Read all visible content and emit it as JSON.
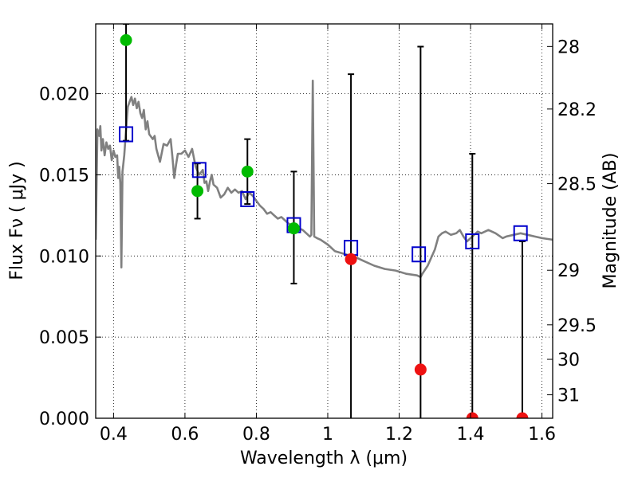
{
  "chart_data": {
    "type": "scatter",
    "title": "",
    "xlabel": "Wavelength  λ (μm)",
    "ylabel": "Flux  Fν  ( μJy )",
    "ylabel_right": "Magnitude (AB)",
    "xlim": [
      0.35,
      1.63
    ],
    "ylim": [
      0.0,
      0.0243
    ],
    "grid": true,
    "x_ticks": [
      0.4,
      0.6,
      0.8,
      1.0,
      1.2,
      1.4,
      1.6
    ],
    "x_tick_labels": [
      "0.4",
      "0.6",
      "0.8",
      "1",
      "1.2",
      "1.4",
      "1.6"
    ],
    "y_ticks": [
      0.0,
      0.005,
      0.01,
      0.015,
      0.02
    ],
    "y_tick_labels": [
      "0.000",
      "0.005",
      "0.010",
      "0.015",
      "0.020"
    ],
    "right_ticks": [
      28,
      28.2,
      28.5,
      29,
      29.5,
      30,
      31
    ],
    "right_tick_labels": [
      "28",
      "28.2",
      "28.5",
      "29",
      "29.5",
      "30",
      "31"
    ],
    "colors": {
      "sed_line": "#808080",
      "model_box": "#0000cc",
      "detection": "#00bb00",
      "upper_limit": "#ee1111",
      "errorbar": "#000000"
    },
    "sed_template": [
      [
        0.35,
        0.011
      ],
      [
        0.355,
        0.0178
      ],
      [
        0.36,
        0.0174
      ],
      [
        0.363,
        0.018
      ],
      [
        0.366,
        0.0165
      ],
      [
        0.37,
        0.0172
      ],
      [
        0.375,
        0.0162
      ],
      [
        0.38,
        0.017
      ],
      [
        0.385,
        0.0166
      ],
      [
        0.39,
        0.0168
      ],
      [
        0.395,
        0.0159
      ],
      [
        0.4,
        0.0165
      ],
      [
        0.405,
        0.0161
      ],
      [
        0.41,
        0.0162
      ],
      [
        0.413,
        0.0148
      ],
      [
        0.416,
        0.0155
      ],
      [
        0.419,
        0.0145
      ],
      [
        0.422,
        0.0093
      ],
      [
        0.425,
        0.0152
      ],
      [
        0.43,
        0.0162
      ],
      [
        0.435,
        0.0178
      ],
      [
        0.44,
        0.0192
      ],
      [
        0.445,
        0.0195
      ],
      [
        0.45,
        0.0198
      ],
      [
        0.455,
        0.0193
      ],
      [
        0.46,
        0.0197
      ],
      [
        0.465,
        0.0191
      ],
      [
        0.47,
        0.0195
      ],
      [
        0.475,
        0.0188
      ],
      [
        0.48,
        0.0185
      ],
      [
        0.485,
        0.019
      ],
      [
        0.49,
        0.0178
      ],
      [
        0.495,
        0.0183
      ],
      [
        0.5,
        0.0175
      ],
      [
        0.51,
        0.0172
      ],
      [
        0.515,
        0.0174
      ],
      [
        0.52,
        0.0166
      ],
      [
        0.525,
        0.0162
      ],
      [
        0.53,
        0.0158
      ],
      [
        0.54,
        0.0169
      ],
      [
        0.55,
        0.0168
      ],
      [
        0.56,
        0.0172
      ],
      [
        0.565,
        0.0161
      ],
      [
        0.57,
        0.0148
      ],
      [
        0.575,
        0.0156
      ],
      [
        0.58,
        0.0163
      ],
      [
        0.59,
        0.0163
      ],
      [
        0.6,
        0.0165
      ],
      [
        0.61,
        0.0161
      ],
      [
        0.62,
        0.0166
      ],
      [
        0.63,
        0.0155
      ],
      [
        0.64,
        0.015
      ],
      [
        0.65,
        0.0153
      ],
      [
        0.655,
        0.0145
      ],
      [
        0.66,
        0.0146
      ],
      [
        0.665,
        0.014
      ],
      [
        0.67,
        0.0146
      ],
      [
        0.675,
        0.015
      ],
      [
        0.68,
        0.0144
      ],
      [
        0.69,
        0.0142
      ],
      [
        0.7,
        0.0136
      ],
      [
        0.71,
        0.0138
      ],
      [
        0.72,
        0.0142
      ],
      [
        0.73,
        0.0139
      ],
      [
        0.74,
        0.0141
      ],
      [
        0.75,
        0.0139
      ],
      [
        0.76,
        0.014
      ],
      [
        0.77,
        0.0135
      ],
      [
        0.78,
        0.0139
      ],
      [
        0.79,
        0.0137
      ],
      [
        0.8,
        0.0134
      ],
      [
        0.81,
        0.0131
      ],
      [
        0.82,
        0.0129
      ],
      [
        0.83,
        0.0126
      ],
      [
        0.84,
        0.0127
      ],
      [
        0.85,
        0.0125
      ],
      [
        0.86,
        0.0123
      ],
      [
        0.87,
        0.0124
      ],
      [
        0.88,
        0.0122
      ],
      [
        0.89,
        0.012
      ],
      [
        0.9,
        0.0119
      ],
      [
        0.91,
        0.0118
      ],
      [
        0.92,
        0.0117
      ],
      [
        0.93,
        0.0116
      ],
      [
        0.94,
        0.0114
      ],
      [
        0.95,
        0.0112
      ],
      [
        0.954,
        0.0113
      ],
      [
        0.958,
        0.0208
      ],
      [
        0.962,
        0.0112
      ],
      [
        0.97,
        0.0111
      ],
      [
        0.98,
        0.011
      ],
      [
        1.0,
        0.0107
      ],
      [
        1.02,
        0.0103
      ],
      [
        1.05,
        0.0101
      ],
      [
        1.08,
        0.0099
      ],
      [
        1.1,
        0.0097
      ],
      [
        1.13,
        0.0094
      ],
      [
        1.16,
        0.0092
      ],
      [
        1.19,
        0.0091
      ],
      [
        1.22,
        0.0089
      ],
      [
        1.25,
        0.0088
      ],
      [
        1.26,
        0.0087
      ],
      [
        1.265,
        0.0089
      ],
      [
        1.28,
        0.0094
      ],
      [
        1.3,
        0.0104
      ],
      [
        1.31,
        0.0112
      ],
      [
        1.32,
        0.0114
      ],
      [
        1.33,
        0.0115
      ],
      [
        1.345,
        0.0113
      ],
      [
        1.36,
        0.0114
      ],
      [
        1.37,
        0.0116
      ],
      [
        1.38,
        0.0112
      ],
      [
        1.39,
        0.0109
      ],
      [
        1.4,
        0.0111
      ],
      [
        1.41,
        0.0113
      ],
      [
        1.42,
        0.0115
      ],
      [
        1.43,
        0.0114
      ],
      [
        1.45,
        0.0116
      ],
      [
        1.47,
        0.0114
      ],
      [
        1.49,
        0.0111
      ],
      [
        1.5,
        0.0112
      ],
      [
        1.52,
        0.0113
      ],
      [
        1.54,
        0.0114
      ],
      [
        1.56,
        0.0113
      ],
      [
        1.58,
        0.0112
      ],
      [
        1.6,
        0.0111
      ],
      [
        1.63,
        0.011
      ]
    ],
    "model_flux_boxes": [
      {
        "x": 0.435,
        "y": 0.0175
      },
      {
        "x": 0.64,
        "y": 0.0153
      },
      {
        "x": 0.775,
        "y": 0.0135
      },
      {
        "x": 0.905,
        "y": 0.0119
      },
      {
        "x": 1.065,
        "y": 0.0105
      },
      {
        "x": 1.255,
        "y": 0.0101
      },
      {
        "x": 1.405,
        "y": 0.0109
      },
      {
        "x": 1.54,
        "y": 0.0114
      }
    ],
    "photometry": [
      {
        "x": 0.435,
        "y": 0.0233,
        "err_low": 0.0171,
        "err_high": 0.0243,
        "kind": "detection"
      },
      {
        "x": 0.635,
        "y": 0.014,
        "err_low": 0.0123,
        "err_high": 0.0157,
        "kind": "detection"
      },
      {
        "x": 0.775,
        "y": 0.0152,
        "err_low": 0.0132,
        "err_high": 0.0172,
        "kind": "detection"
      },
      {
        "x": 0.905,
        "y": 0.0117,
        "err_low": 0.0083,
        "err_high": 0.0152,
        "kind": "detection"
      },
      {
        "x": 1.065,
        "y": 0.0098,
        "err_low": 0.0,
        "err_high": 0.0212,
        "kind": "upper_limit"
      },
      {
        "x": 1.26,
        "y": 0.003,
        "err_low": 0.0,
        "err_high": 0.0229,
        "kind": "upper_limit"
      },
      {
        "x": 1.405,
        "y": 0.0,
        "err_low": 0.0,
        "err_high": 0.0163,
        "kind": "upper_limit"
      },
      {
        "x": 1.545,
        "y": 0.0,
        "err_low": 0.0,
        "err_high": 0.0109,
        "kind": "upper_limit"
      }
    ]
  }
}
